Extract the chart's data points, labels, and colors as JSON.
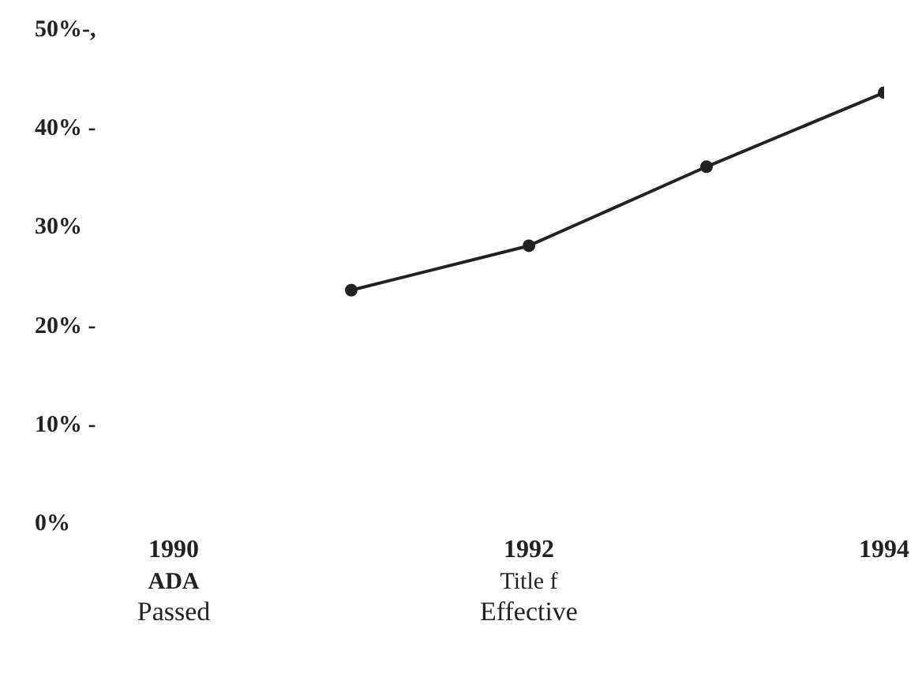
{
  "chart_data": {
    "type": "line",
    "x": [
      1991,
      1992,
      1993,
      1994
    ],
    "series": [
      {
        "color": "#222222",
        "values": [
          23.5,
          28,
          36,
          43.5
        ]
      }
    ],
    "xlim": [
      1990,
      1994
    ],
    "xticks": [
      {
        "value": 1990,
        "label": "1990\nADA\nPassed"
      },
      {
        "value": 1992,
        "label": "1992\nTitle f\nEffective"
      },
      {
        "value": 1994,
        "label": "1994"
      }
    ],
    "ylim": [
      0,
      50
    ],
    "yticks": [
      {
        "value": 0,
        "label": "0%"
      },
      {
        "value": 10,
        "label": "10% -"
      },
      {
        "value": 20,
        "label": "20% -"
      },
      {
        "value": 30,
        "label": "30%"
      },
      {
        "value": 40,
        "label": "40% -"
      },
      {
        "value": 50,
        "label": "50%-,"
      }
    ],
    "grid": false,
    "legend": false,
    "marker": "circle",
    "line_style": "solid"
  }
}
